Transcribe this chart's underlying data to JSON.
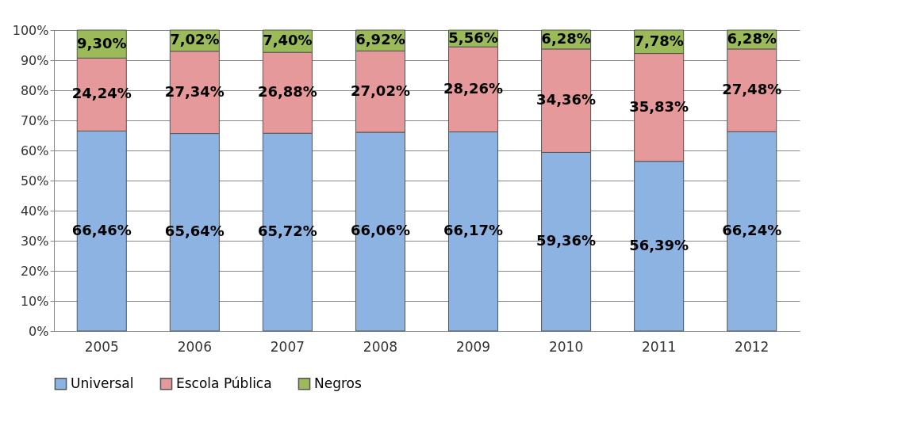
{
  "chart_data": {
    "type": "bar",
    "stacked": true,
    "categories": [
      "2005",
      "2006",
      "2007",
      "2008",
      "2009",
      "2010",
      "2011",
      "2012"
    ],
    "series": [
      {
        "name": "Universal",
        "color": "#8db3e2",
        "values": [
          66.46,
          65.64,
          65.72,
          66.06,
          66.17,
          59.36,
          56.39,
          66.24
        ],
        "value_labels": [
          "66,46%",
          "65,64%",
          "65,72%",
          "66,06%",
          "66,17%",
          "59,36%",
          "56,39%",
          "66,24%"
        ]
      },
      {
        "name": "Escola Pública",
        "color": "#e6999a",
        "values": [
          24.24,
          27.34,
          26.88,
          27.02,
          28.26,
          34.36,
          35.83,
          27.48
        ],
        "value_labels": [
          "24,24%",
          "27,34%",
          "26,88%",
          "27,02%",
          "28,26%",
          "34,36%",
          "35,83%",
          "27,48%"
        ]
      },
      {
        "name": "Negros",
        "color": "#9bbb59",
        "values": [
          9.3,
          7.02,
          7.4,
          6.92,
          5.56,
          6.28,
          7.78,
          6.28
        ],
        "value_labels": [
          "9,30%",
          "7,02%",
          "7,40%",
          "6,92%",
          "5,56%",
          "6,28%",
          "7,78%",
          "6,28%"
        ]
      }
    ],
    "ylim": [
      0,
      100
    ],
    "yticks": [
      {
        "value": 0,
        "label": "0%"
      },
      {
        "value": 10,
        "label": "10%"
      },
      {
        "value": 20,
        "label": "20%"
      },
      {
        "value": 30,
        "label": "30%"
      },
      {
        "value": 40,
        "label": "40%"
      },
      {
        "value": 50,
        "label": "50%"
      },
      {
        "value": 60,
        "label": "60%"
      },
      {
        "value": 70,
        "label": "70%"
      },
      {
        "value": 80,
        "label": "80%"
      },
      {
        "value": 90,
        "label": "90%"
      },
      {
        "value": 100,
        "label": "100%"
      }
    ],
    "grid": "y",
    "legend": "bottom"
  }
}
